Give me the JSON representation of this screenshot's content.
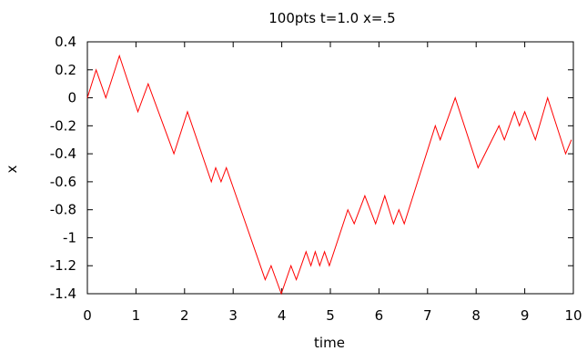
{
  "chart_data": {
    "type": "line",
    "title": "100pts  t=1.0  x=.5",
    "xlabel": "time",
    "ylabel": "x",
    "xlim": [
      0,
      10
    ],
    "ylim": [
      -1.4,
      0.4
    ],
    "xticks": [
      0,
      1,
      2,
      3,
      4,
      5,
      6,
      7,
      8,
      9,
      10
    ],
    "yticks": [
      0.4,
      0.2,
      0,
      -0.2,
      -0.4,
      -0.6,
      -0.8,
      -1,
      -1.2,
      -1.4
    ],
    "xtick_labels": [
      "0",
      "1",
      "2",
      "3",
      "4",
      "5",
      "6",
      "7",
      "8",
      "9",
      "10"
    ],
    "ytick_labels": [
      "0.4",
      "0.2",
      "0",
      "-0.2",
      "-0.4",
      "-0.6",
      "-0.8",
      "-1",
      "-1.2",
      "-1.4"
    ],
    "grid": false,
    "series": [
      {
        "color": "#ff0000",
        "points": [
          [
            0,
            0
          ],
          [
            0.18,
            0.2
          ],
          [
            0.38,
            0
          ],
          [
            0.66,
            0.3
          ],
          [
            1.04,
            -0.1
          ],
          [
            1.25,
            0.1
          ],
          [
            1.78,
            -0.4
          ],
          [
            2.06,
            -0.1
          ],
          [
            2.55,
            -0.6
          ],
          [
            2.64,
            -0.5
          ],
          [
            2.75,
            -0.6
          ],
          [
            2.86,
            -0.5
          ],
          [
            3.66,
            -1.3
          ],
          [
            3.78,
            -1.2
          ],
          [
            3.99,
            -1.4
          ],
          [
            4.19,
            -1.2
          ],
          [
            4.3,
            -1.3
          ],
          [
            4.5,
            -1.1
          ],
          [
            4.6,
            -1.2
          ],
          [
            4.69,
            -1.1
          ],
          [
            4.78,
            -1.2
          ],
          [
            4.88,
            -1.1
          ],
          [
            4.98,
            -1.2
          ],
          [
            5.36,
            -0.8
          ],
          [
            5.49,
            -0.9
          ],
          [
            5.71,
            -0.7
          ],
          [
            5.93,
            -0.9
          ],
          [
            6.12,
            -0.7
          ],
          [
            6.3,
            -0.9
          ],
          [
            6.41,
            -0.8
          ],
          [
            6.52,
            -0.9
          ],
          [
            7.16,
            -0.2
          ],
          [
            7.26,
            -0.3
          ],
          [
            7.57,
            0
          ],
          [
            8.04,
            -0.5
          ],
          [
            8.47,
            -0.2
          ],
          [
            8.58,
            -0.3
          ],
          [
            8.79,
            -0.1
          ],
          [
            8.89,
            -0.2
          ],
          [
            9.0,
            -0.1
          ],
          [
            9.22,
            -0.3
          ],
          [
            9.47,
            0
          ],
          [
            9.84,
            -0.4
          ],
          [
            9.96,
            -0.3
          ]
        ]
      }
    ]
  }
}
